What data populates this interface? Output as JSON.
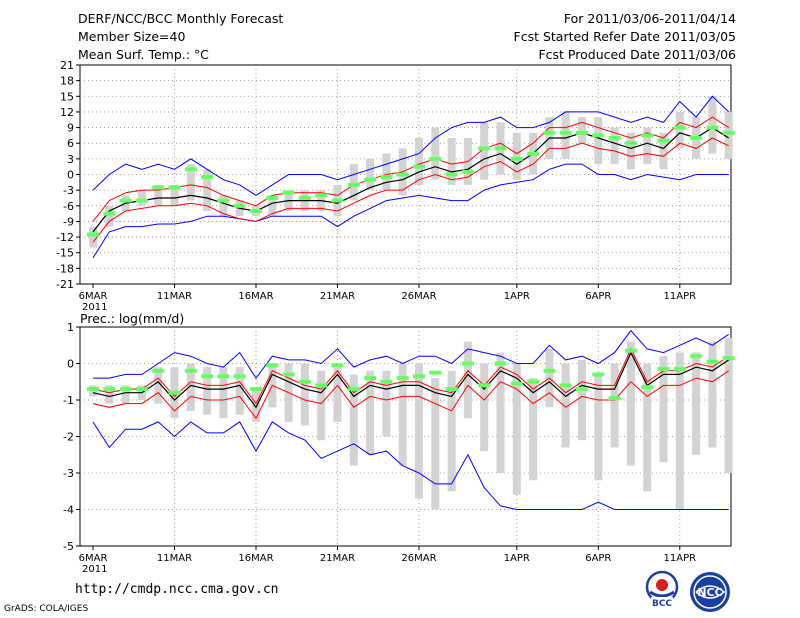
{
  "header": {
    "title": "DERF/NCC/BCC Monthly Forecast",
    "member_size": "Member Size=40",
    "variable": "Mean Surf. Temp.: °C",
    "period": "For 2011/03/06-2011/04/14",
    "start_date": "Fcst Started Refer Date 2011/03/05",
    "produced_date": "Fcst Produced Date 2011/03/06"
  },
  "footer": {
    "url": "http://cmdp.ncc.cma.gov.cn",
    "credit": "GrADS: COLA/IGES",
    "logo_bcc": "BCC",
    "logo_ncc": "NCC"
  },
  "colors": {
    "envelope": "#0000ff",
    "spread": "#ff0000",
    "mean": "#000000",
    "median": "#66ff66",
    "box": "#d3d3d3",
    "grid": "#888888"
  },
  "chart_data": [
    {
      "type": "box-ensemble",
      "title": "Mean Surf. Temp.: °C",
      "ylim": [
        -21,
        21
      ],
      "yticks": [
        -21,
        -18,
        -15,
        -12,
        -9,
        -6,
        -3,
        0,
        3,
        6,
        9,
        12,
        15,
        18,
        21
      ],
      "x_tick_labels": [
        "6MAR",
        "11MAR",
        "16MAR",
        "21MAR",
        "26MAR",
        "1APR",
        "6APR",
        "11APR"
      ],
      "x_tick_days": [
        0,
        5,
        10,
        15,
        20,
        26,
        31,
        36
      ],
      "year_label": "2011",
      "days": 40,
      "series": {
        "max": [
          -3,
          0,
          2,
          1,
          2,
          1,
          3,
          1,
          -1,
          -2,
          -4,
          -2,
          0,
          0,
          0,
          -1,
          0,
          1,
          2,
          3,
          4,
          7,
          9,
          10,
          10,
          11,
          9,
          9,
          10,
          12,
          12,
          12,
          11,
          10,
          11,
          10,
          14,
          11,
          15,
          12
        ],
        "mean_plus_sd": [
          -9,
          -5,
          -3.5,
          -3,
          -3,
          -2.5,
          -2,
          -2.5,
          -4,
          -5,
          -6,
          -4,
          -3.5,
          -3.5,
          -3.5,
          -4,
          -2,
          -1,
          0,
          0.5,
          2,
          3,
          2,
          2.5,
          5,
          6,
          4,
          6,
          9,
          9,
          10,
          9,
          8,
          7,
          8,
          7,
          10,
          9,
          11,
          9
        ],
        "mean": [
          -11,
          -7,
          -5.5,
          -5,
          -4.5,
          -4.5,
          -4,
          -4.5,
          -5.5,
          -6.5,
          -7,
          -5.5,
          -5,
          -5,
          -5,
          -5.5,
          -4,
          -2.5,
          -1.5,
          -1,
          0.5,
          1.5,
          0.5,
          1,
          3,
          4,
          2,
          4,
          7,
          7,
          8,
          7,
          6,
          5,
          6,
          5,
          8,
          7,
          9,
          7
        ],
        "mean_minus_sd": [
          -13,
          -9,
          -7,
          -6.5,
          -6,
          -6,
          -5.5,
          -6,
          -7.5,
          -8.5,
          -9,
          -7.5,
          -6.5,
          -6.5,
          -6.5,
          -7,
          -5.5,
          -4,
          -3,
          -3,
          -1,
          0,
          -1,
          -0.5,
          1.5,
          2.5,
          0.5,
          2,
          5,
          5,
          6,
          5,
          4.5,
          3.5,
          4,
          3.5,
          6,
          5,
          7,
          5.5
        ],
        "min": [
          -16,
          -11,
          -10,
          -10,
          -9.5,
          -9.5,
          -9,
          -8,
          -8,
          -8.5,
          -9,
          -8,
          -8,
          -8,
          -8,
          -10,
          -8,
          -6.5,
          -5,
          -4.5,
          -4,
          -4.5,
          -5,
          -5,
          -3,
          -2,
          -1.5,
          -1,
          1,
          2,
          2,
          0,
          0,
          -1,
          0,
          -0.5,
          -1,
          0,
          0,
          0
        ],
        "box_hi": [
          -10,
          -6,
          -4,
          -3,
          -2,
          -2,
          2,
          1,
          -4,
          -5,
          -6,
          -4,
          -3,
          -3,
          -3,
          -2,
          2,
          3,
          4,
          5,
          7,
          9,
          7,
          7,
          10,
          10,
          8,
          8,
          11,
          12,
          11,
          11,
          9,
          8,
          9,
          8,
          12,
          11,
          15,
          12
        ],
        "box_lo": [
          -14,
          -10,
          -7,
          -6,
          -6,
          -6,
          -5,
          -7,
          -8,
          -8,
          -8,
          -8,
          -7,
          -7,
          -7,
          -8,
          -5,
          -3,
          -3,
          -4,
          -2,
          -1,
          -2,
          -2,
          -1,
          0,
          -1,
          0,
          3,
          3,
          6,
          2,
          2,
          1,
          2,
          1,
          5,
          3,
          4,
          3
        ],
        "median": [
          -11.5,
          -7.5,
          -5,
          -5,
          -2.5,
          -2.5,
          1,
          -0.5,
          -5,
          -6,
          -7,
          -4.5,
          -3.5,
          -4.5,
          -4,
          -5,
          -2,
          -1,
          -0.5,
          0,
          1.5,
          3,
          0,
          0.5,
          5,
          5,
          3,
          4,
          8,
          8,
          8,
          7.5,
          7,
          6,
          7.5,
          6.5,
          9,
          7,
          9,
          8
        ]
      }
    },
    {
      "type": "box-ensemble",
      "title": "Prec.: log(mm/d)",
      "ylim": [
        -5,
        1
      ],
      "yticks": [
        -5,
        -4,
        -3,
        -2,
        -1,
        0,
        1
      ],
      "x_tick_labels": [
        "6MAR",
        "11MAR",
        "16MAR",
        "21MAR",
        "26MAR",
        "1APR",
        "6APR",
        "11APR"
      ],
      "x_tick_days": [
        0,
        5,
        10,
        15,
        20,
        26,
        31,
        36
      ],
      "year_label": "2011",
      "days": 40,
      "series": {
        "max": [
          -0.4,
          -0.4,
          -0.3,
          -0.3,
          0,
          0.3,
          0.2,
          0,
          -0.1,
          0.3,
          -0.4,
          0.2,
          0.1,
          0.1,
          0,
          0.4,
          -0.1,
          0.1,
          0.2,
          0,
          0.2,
          0.2,
          0,
          0.4,
          0.3,
          0.2,
          0,
          0,
          0.5,
          0.1,
          0.2,
          0,
          0.3,
          0.9,
          0.4,
          0.3,
          0.5,
          0.7,
          0.5,
          0.8
        ],
        "mean_plus_sd": [
          -0.7,
          -0.8,
          -0.7,
          -0.7,
          -0.4,
          -0.9,
          -0.5,
          -0.6,
          -0.6,
          -0.5,
          -1.1,
          -0.2,
          -0.4,
          -0.6,
          -0.7,
          -0.2,
          -0.8,
          -0.5,
          -0.6,
          -0.5,
          -0.5,
          -0.7,
          -0.8,
          -0.2,
          -0.6,
          -0.1,
          -0.3,
          -0.7,
          -0.4,
          -0.8,
          -0.5,
          -0.6,
          -0.6,
          0.4,
          -0.5,
          -0.2,
          -0.2,
          0,
          -0.1,
          0.2
        ],
        "mean": [
          -0.8,
          -0.9,
          -0.8,
          -0.8,
          -0.5,
          -1,
          -0.6,
          -0.7,
          -0.7,
          -0.6,
          -1.2,
          -0.3,
          -0.5,
          -0.7,
          -0.8,
          -0.3,
          -0.9,
          -0.6,
          -0.7,
          -0.6,
          -0.6,
          -0.8,
          -0.9,
          -0.3,
          -0.7,
          -0.2,
          -0.4,
          -0.8,
          -0.5,
          -0.9,
          -0.6,
          -0.7,
          -0.7,
          0.3,
          -0.6,
          -0.3,
          -0.3,
          -0.1,
          -0.2,
          0.1
        ],
        "mean_minus_sd": [
          -1.1,
          -1.2,
          -1.1,
          -1.1,
          -0.8,
          -1.3,
          -0.9,
          -1,
          -1,
          -0.9,
          -1.5,
          -0.6,
          -0.8,
          -1,
          -1.1,
          -0.6,
          -1.2,
          -0.9,
          -1,
          -0.9,
          -0.9,
          -1.1,
          -1.3,
          -0.6,
          -1,
          -0.5,
          -0.7,
          -1.1,
          -0.8,
          -1.2,
          -0.9,
          -1,
          -1,
          -0.5,
          -0.9,
          -0.6,
          -0.6,
          -0.4,
          -0.5,
          -0.2
        ],
        "min": [
          -1.6,
          -2.3,
          -1.8,
          -1.8,
          -1.6,
          -2,
          -1.6,
          -1.9,
          -1.9,
          -1.6,
          -2.4,
          -1.6,
          -1.9,
          -2.1,
          -2.6,
          -2.4,
          -2.2,
          -2.5,
          -2.4,
          -2.8,
          -3,
          -3.3,
          -3.3,
          -2.5,
          -3.4,
          -3.9,
          -4,
          -4,
          -4,
          -4,
          -4,
          -3.8,
          -4,
          -4,
          -4,
          -4,
          -4,
          -4,
          -4,
          -4
        ],
        "box_hi": [
          -0.6,
          -0.6,
          -0.6,
          -0.6,
          -0.1,
          -0.1,
          0,
          -0.1,
          -0.1,
          -0.1,
          -0.7,
          0,
          0,
          0,
          -0.2,
          0,
          -0.3,
          -0.2,
          -0.2,
          0,
          0,
          -0.4,
          -0.2,
          0.6,
          0,
          0.3,
          0,
          -0.4,
          0.4,
          0,
          0.1,
          -0.3,
          0,
          0.6,
          0,
          0.2,
          0.3,
          0.3,
          0.6,
          0.7
        ],
        "box_lo": [
          -0.9,
          -1.1,
          -1.1,
          -1,
          -1.1,
          -1.5,
          -1.3,
          -1.4,
          -1.5,
          -1.4,
          -1.6,
          -1.2,
          -1.6,
          -1.7,
          -2.1,
          -1.6,
          -2.8,
          -2.5,
          -2,
          -2.8,
          -3.7,
          -4,
          -3.5,
          -1.5,
          -2.4,
          -3,
          -3.6,
          -3.2,
          -1.2,
          -2.3,
          -2.1,
          -3.2,
          -2.3,
          -2.8,
          -3.5,
          -2.7,
          -4,
          -2.5,
          -2.3,
          -3
        ],
        "median": [
          -0.7,
          -0.7,
          -0.7,
          -0.7,
          -0.2,
          -0.8,
          -0.2,
          -0.35,
          -0.35,
          -0.35,
          -0.7,
          -0.05,
          -0.3,
          -0.5,
          -0.6,
          -0.05,
          -0.7,
          -0.4,
          -0.5,
          -0.4,
          -0.35,
          -0.25,
          -0.7,
          0,
          -0.6,
          0,
          -0.55,
          -0.5,
          -0.2,
          -0.6,
          -0.7,
          -0.3,
          -0.95,
          0.35,
          -0.65,
          -0.15,
          -0.15,
          0.2,
          0.05,
          0.15
        ]
      }
    }
  ]
}
